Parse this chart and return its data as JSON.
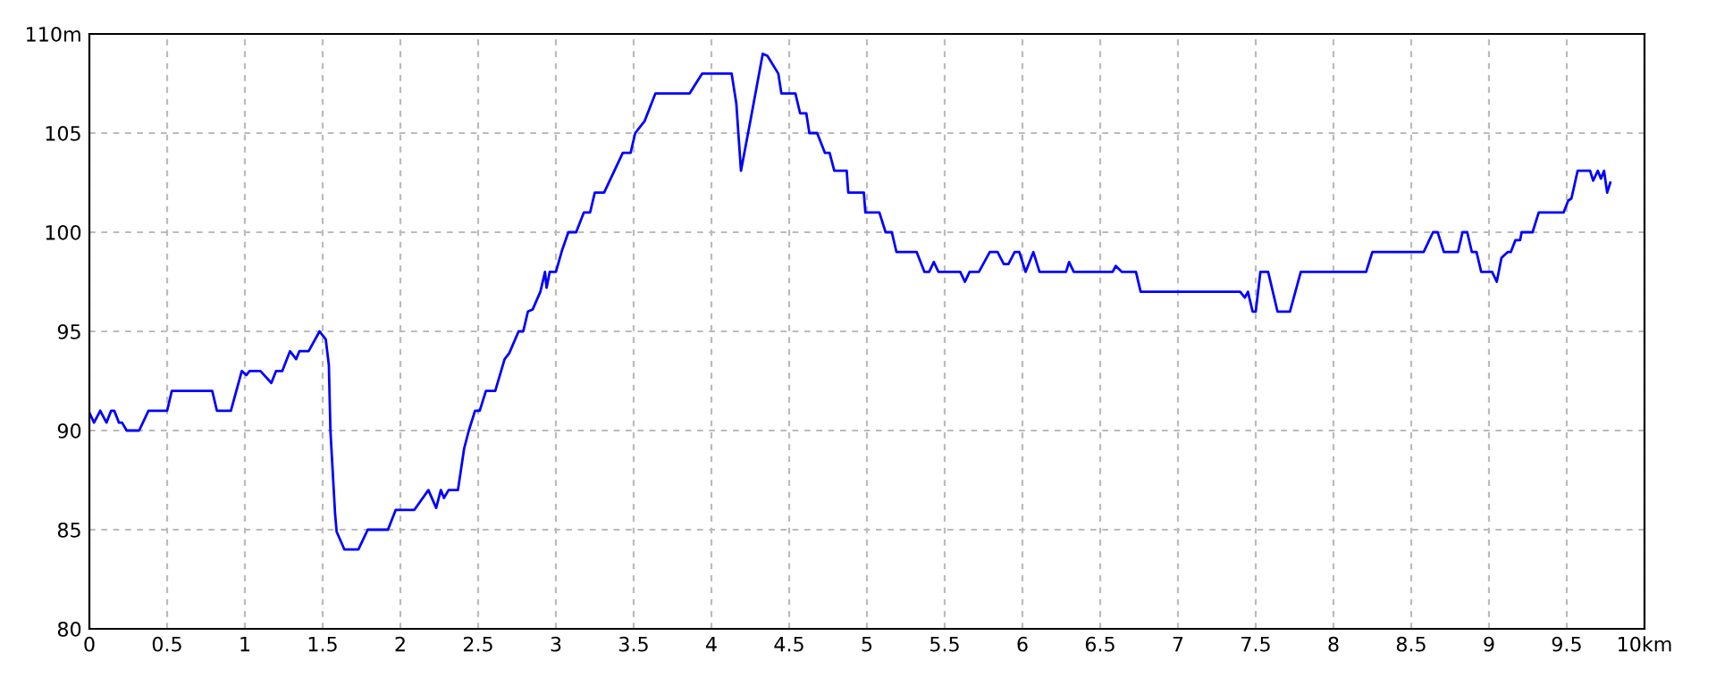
{
  "chart_data": {
    "type": "line",
    "x": [
      0,
      0.03,
      0.07,
      0.11,
      0.14,
      0.16,
      0.19,
      0.21,
      0.24,
      0.32,
      0.38,
      0.5,
      0.53,
      0.79,
      0.82,
      0.91,
      0.98,
      1.01,
      1.03,
      1.1,
      1.17,
      1.2,
      1.24,
      1.29,
      1.33,
      1.35,
      1.41,
      1.48,
      1.52,
      1.54,
      1.55,
      1.58,
      1.59,
      1.64,
      1.73,
      1.79,
      1.92,
      1.97,
      2.09,
      2.18,
      2.23,
      2.26,
      2.28,
      2.31,
      2.37,
      2.41,
      2.44,
      2.48,
      2.51,
      2.55,
      2.61,
      2.67,
      2.7,
      2.76,
      2.79,
      2.82,
      2.85,
      2.9,
      2.93,
      2.94,
      2.96,
      3.0,
      3.04,
      3.08,
      3.13,
      3.18,
      3.22,
      3.25,
      3.31,
      3.43,
      3.48,
      3.51,
      3.57,
      3.64,
      3.86,
      3.94,
      4.13,
      4.16,
      4.19,
      4.25,
      4.33,
      4.36,
      4.43,
      4.45,
      4.54,
      4.57,
      4.61,
      4.63,
      4.68,
      4.73,
      4.76,
      4.79,
      4.87,
      4.88,
      4.98,
      4.99,
      5.08,
      5.12,
      5.16,
      5.19,
      5.32,
      5.37,
      5.4,
      5.43,
      5.46,
      5.6,
      5.63,
      5.66,
      5.72,
      5.79,
      5.84,
      5.88,
      5.91,
      5.95,
      5.98,
      6.02,
      6.07,
      6.11,
      6.28,
      6.3,
      6.33,
      6.58,
      6.6,
      6.64,
      6.73,
      6.76,
      7.0,
      7.4,
      7.43,
      7.45,
      7.48,
      7.5,
      7.53,
      7.58,
      7.64,
      7.72,
      7.79,
      8.21,
      8.25,
      8.58,
      8.64,
      8.67,
      8.71,
      8.8,
      8.83,
      8.86,
      8.89,
      8.92,
      8.95,
      9.02,
      9.05,
      9.08,
      9.12,
      9.14,
      9.17,
      9.2,
      9.21,
      9.28,
      9.32,
      9.48,
      9.51,
      9.53,
      9.57,
      9.65,
      9.67,
      9.7,
      9.72,
      9.74,
      9.76,
      9.78
    ],
    "series": [
      {
        "color": "#0000ff",
        "values": [
          90.9,
          90.4,
          91,
          90.4,
          91,
          91,
          90.4,
          90.4,
          90,
          90,
          91,
          91,
          92,
          92,
          91,
          91,
          93,
          92.8,
          93,
          93,
          92.4,
          93,
          93,
          94,
          93.6,
          94,
          94,
          95,
          94.6,
          93.3,
          90,
          85.8,
          84.9,
          84,
          84,
          85,
          85,
          86,
          86,
          87,
          86.1,
          87,
          86.6,
          87,
          87,
          89.1,
          90,
          91,
          91,
          92,
          92,
          93.6,
          93.9,
          95,
          95,
          96,
          96.1,
          97,
          98,
          97.2,
          98,
          98,
          99.1,
          100,
          100,
          101,
          101,
          102,
          102,
          104,
          104,
          105,
          105.6,
          107,
          107,
          108,
          108,
          106.5,
          103.1,
          105.6,
          109,
          108.9,
          108,
          107,
          107,
          106,
          106,
          105,
          105,
          104,
          104,
          103.1,
          103.1,
          102,
          102,
          101,
          101,
          100,
          100,
          99,
          99,
          98,
          98,
          98.5,
          98,
          98,
          97.5,
          98,
          98,
          99,
          99,
          98.4,
          98.4,
          99,
          99,
          98,
          99,
          98,
          98,
          98.5,
          98,
          98,
          98.3,
          98,
          98,
          97,
          97,
          97,
          96.7,
          97,
          96,
          96,
          98,
          98,
          96,
          96,
          98,
          98,
          99,
          99,
          100,
          100,
          99,
          99,
          100,
          100,
          99,
          99,
          98,
          98,
          97.5,
          98.7,
          99,
          99,
          99.6,
          99.6,
          100,
          100,
          101,
          101,
          101.6,
          101.7,
          103.1,
          103.1,
          102.6,
          103.1,
          102.7,
          103.1,
          102,
          102.5
        ]
      }
    ],
    "xlim": [
      0,
      10
    ],
    "ylim": [
      80,
      110
    ],
    "xticks": [
      0,
      0.5,
      1,
      1.5,
      2,
      2.5,
      3,
      3.5,
      4,
      4.5,
      5,
      5.5,
      6,
      6.5,
      7,
      7.5,
      8,
      8.5,
      9,
      9.5,
      {
        "value": 10,
        "label": "10km"
      }
    ],
    "yticks": [
      80,
      85,
      90,
      95,
      100,
      105,
      {
        "value": 110,
        "label": "110m"
      }
    ],
    "grid": true,
    "line_style": "solid",
    "marker": "none"
  }
}
